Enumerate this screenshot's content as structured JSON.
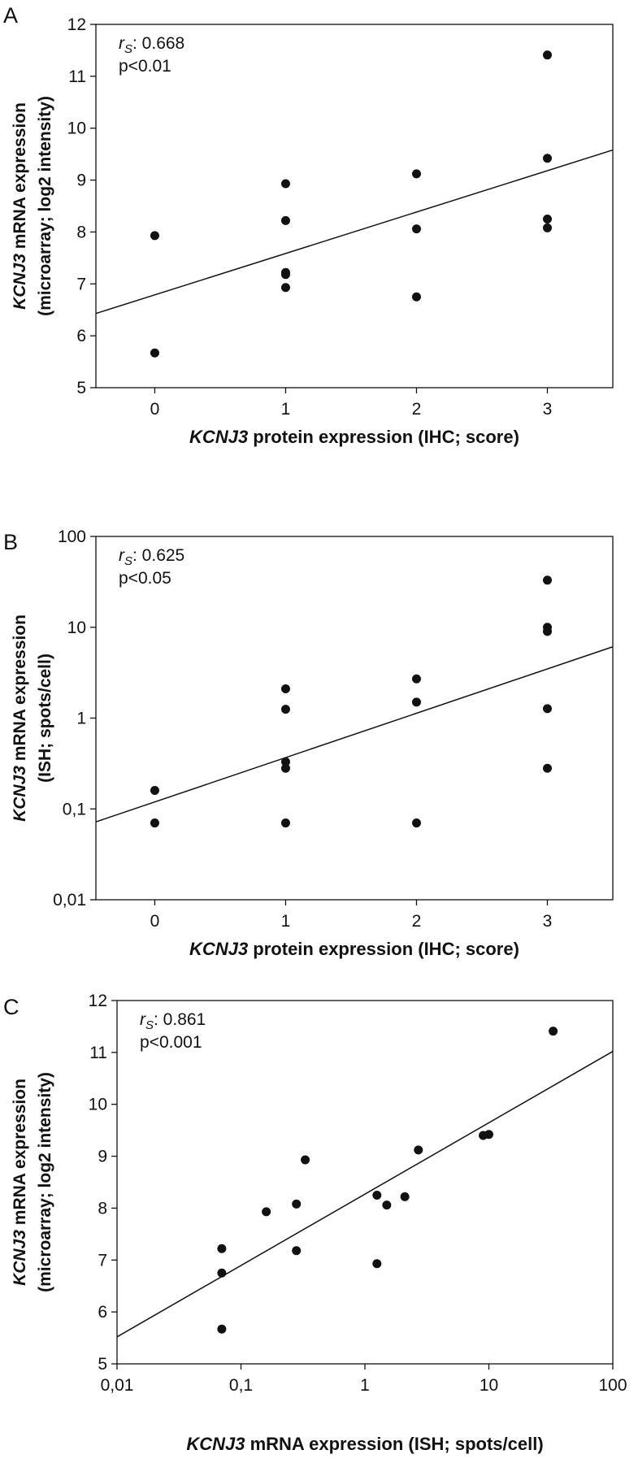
{
  "figure": {
    "panels": [
      "A",
      "B",
      "C"
    ]
  },
  "chart_data": [
    {
      "panel": "A",
      "type": "scatter",
      "annotation": {
        "stat_label": "r",
        "stat_sub": "S",
        "stat_value": ": 0.668",
        "p_value": "p<0.01"
      },
      "x_label": {
        "gene": "KCNJ3",
        "rest": " protein expression (IHC; score)"
      },
      "y_label": {
        "line1_gene": "KCNJ3",
        "line1_rest": " mRNA expression",
        "line2": "(microarray; log2 intensity)"
      },
      "x_scale": "linear",
      "y_scale": "linear",
      "xlim": [
        -0.45,
        3.5
      ],
      "ylim": [
        5,
        12
      ],
      "x_ticks": [
        0,
        1,
        2,
        3
      ],
      "x_tick_labels": [
        "0",
        "1",
        "2",
        "3"
      ],
      "y_ticks": [
        5,
        6,
        7,
        8,
        9,
        10,
        11,
        12
      ],
      "y_tick_labels": [
        "5",
        "6",
        "7",
        "8",
        "9",
        "10",
        "11",
        "12"
      ],
      "points": [
        {
          "x": 0,
          "y": 7.93
        },
        {
          "x": 0,
          "y": 5.67
        },
        {
          "x": 1,
          "y": 8.93
        },
        {
          "x": 1,
          "y": 8.22
        },
        {
          "x": 1,
          "y": 7.22
        },
        {
          "x": 1,
          "y": 7.18
        },
        {
          "x": 1,
          "y": 6.93
        },
        {
          "x": 2,
          "y": 9.12
        },
        {
          "x": 2,
          "y": 8.06
        },
        {
          "x": 2,
          "y": 6.75
        },
        {
          "x": 3,
          "y": 11.41
        },
        {
          "x": 3,
          "y": 9.42
        },
        {
          "x": 3,
          "y": 8.25
        },
        {
          "x": 3,
          "y": 8.08
        }
      ],
      "fit_line": {
        "x": [
          -0.45,
          3.5
        ],
        "y": [
          6.43,
          9.58
        ]
      }
    },
    {
      "panel": "B",
      "type": "scatter",
      "annotation": {
        "stat_label": "r",
        "stat_sub": "S",
        "stat_value": ": 0.625",
        "p_value": "p<0.05"
      },
      "x_label": {
        "gene": "KCNJ3",
        "rest": " protein expression (IHC; score)"
      },
      "y_label": {
        "line1_gene": "KCNJ3",
        "line1_rest": " mRNA expression",
        "line2": "(ISH; spots/cell)"
      },
      "x_scale": "linear",
      "y_scale": "log",
      "xlim": [
        -0.45,
        3.5
      ],
      "ylim": [
        0.01,
        100
      ],
      "x_ticks": [
        0,
        1,
        2,
        3
      ],
      "x_tick_labels": [
        "0",
        "1",
        "2",
        "3"
      ],
      "y_ticks": [
        0.01,
        0.1,
        1,
        10,
        100
      ],
      "y_tick_labels": [
        "0,01",
        "0,1",
        "1",
        "10",
        "100"
      ],
      "points": [
        {
          "x": 0,
          "y": 0.16
        },
        {
          "x": 0,
          "y": 0.07
        },
        {
          "x": 1,
          "y": 2.1
        },
        {
          "x": 1,
          "y": 1.25
        },
        {
          "x": 1,
          "y": 0.33
        },
        {
          "x": 1,
          "y": 0.28
        },
        {
          "x": 1,
          "y": 0.07
        },
        {
          "x": 2,
          "y": 2.7
        },
        {
          "x": 2,
          "y": 1.5
        },
        {
          "x": 2,
          "y": 0.07
        },
        {
          "x": 3,
          "y": 33
        },
        {
          "x": 3,
          "y": 10
        },
        {
          "x": 3,
          "y": 9
        },
        {
          "x": 3,
          "y": 1.27
        },
        {
          "x": 3,
          "y": 0.28
        }
      ],
      "fit_line": {
        "x": [
          -0.45,
          3.5
        ],
        "y": [
          0.072,
          6.1
        ]
      }
    },
    {
      "panel": "C",
      "type": "scatter",
      "annotation": {
        "stat_label": "r",
        "stat_sub": "S",
        "stat_value": ": 0.861",
        "p_value": "p<0.001"
      },
      "x_label": {
        "gene": "KCNJ3",
        "rest": " mRNA expression (ISH; spots/cell)"
      },
      "y_label": {
        "line1_gene": "KCNJ3",
        "line1_rest": " mRNA expression",
        "line2": "(microarray; log2 intensity)"
      },
      "x_scale": "log",
      "y_scale": "linear",
      "xlim": [
        0.01,
        100
      ],
      "ylim": [
        5,
        12
      ],
      "x_ticks": [
        0.01,
        0.1,
        1,
        10,
        100
      ],
      "x_tick_labels": [
        "0,01",
        "0,1",
        "1",
        "10",
        "100"
      ],
      "y_ticks": [
        5,
        6,
        7,
        8,
        9,
        10,
        11,
        12
      ],
      "y_tick_labels": [
        "5",
        "6",
        "7",
        "8",
        "9",
        "10",
        "11",
        "12"
      ],
      "points": [
        {
          "x": 0.07,
          "y": 7.22
        },
        {
          "x": 0.07,
          "y": 6.75
        },
        {
          "x": 0.07,
          "y": 5.67
        },
        {
          "x": 0.16,
          "y": 7.93
        },
        {
          "x": 0.28,
          "y": 8.08
        },
        {
          "x": 0.28,
          "y": 7.18
        },
        {
          "x": 0.33,
          "y": 8.93
        },
        {
          "x": 1.25,
          "y": 8.25
        },
        {
          "x": 1.25,
          "y": 6.93
        },
        {
          "x": 1.5,
          "y": 8.06
        },
        {
          "x": 2.1,
          "y": 8.22
        },
        {
          "x": 2.7,
          "y": 9.12
        },
        {
          "x": 9,
          "y": 9.4
        },
        {
          "x": 10,
          "y": 9.42
        },
        {
          "x": 33,
          "y": 11.41
        }
      ],
      "fit_line": {
        "x": [
          0.01,
          100
        ],
        "y": [
          5.52,
          11.02
        ]
      }
    }
  ]
}
